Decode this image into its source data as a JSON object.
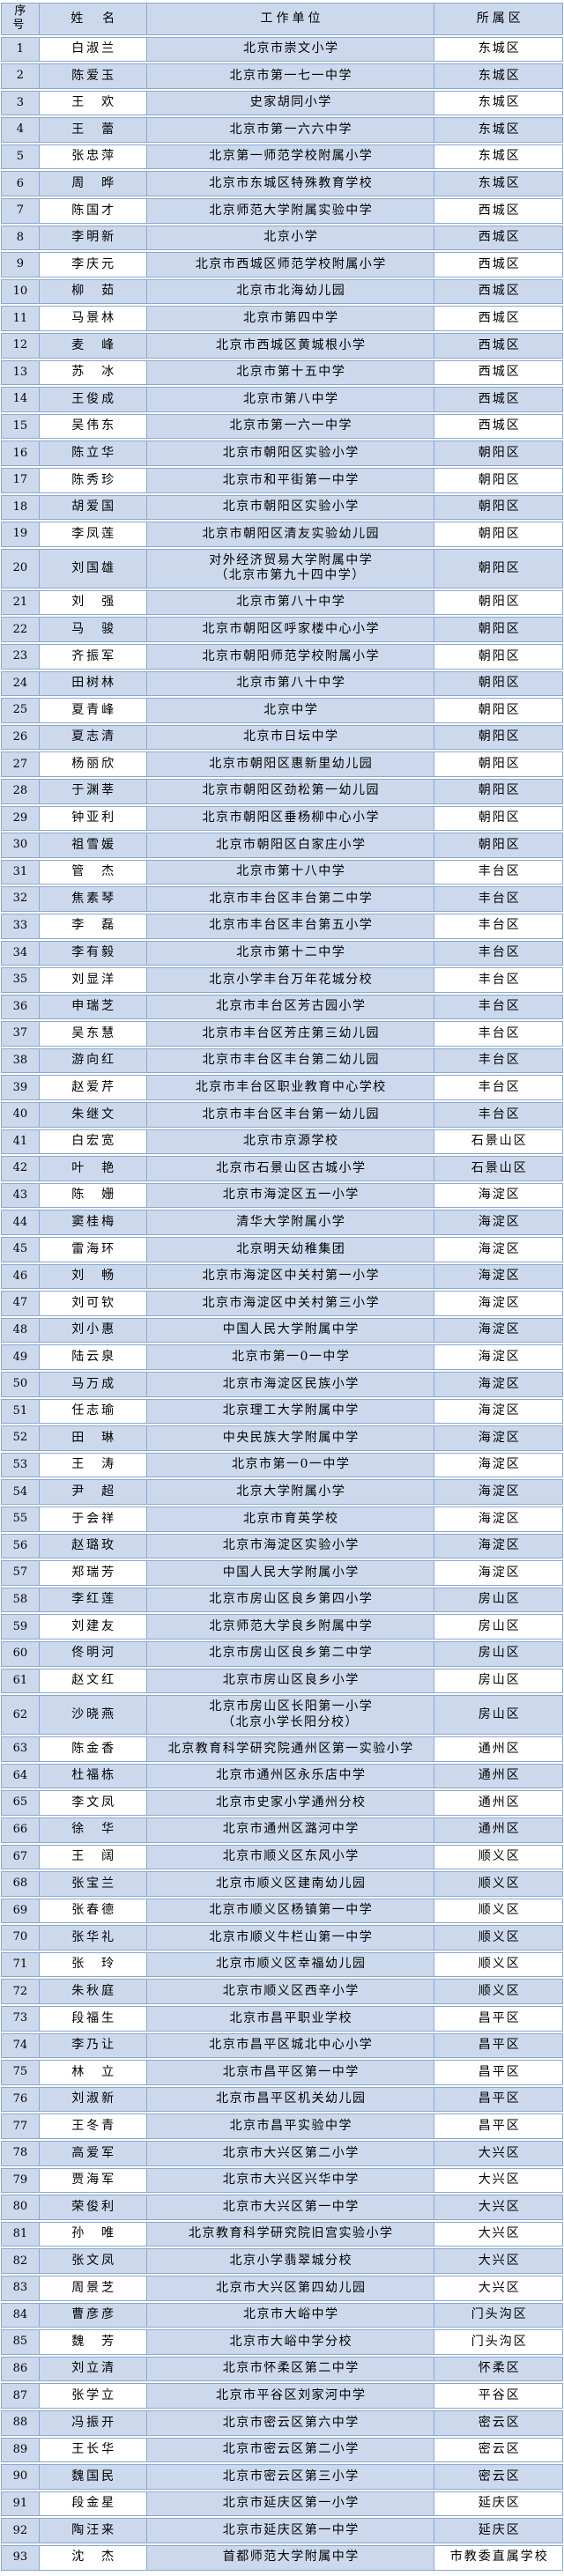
{
  "colors": {
    "cell_blue": "#ccd9ed",
    "cell_white": "#ffffff",
    "border": "#8ba7d0",
    "text": "#000000"
  },
  "table": {
    "headers": [
      "序号",
      "姓　名",
      "工作单位",
      "所属区"
    ],
    "rows": [
      {
        "no": "1",
        "name": "白淑兰",
        "unit": "北京市崇文小学",
        "district": "东城区"
      },
      {
        "no": "2",
        "name": "陈爱玉",
        "unit": "北京市第一七一中学",
        "district": "东城区"
      },
      {
        "no": "3",
        "name": "王　欢",
        "unit": "史家胡同小学",
        "district": "东城区"
      },
      {
        "no": "4",
        "name": "王　蕾",
        "unit": "北京市第一六六中学",
        "district": "东城区"
      },
      {
        "no": "5",
        "name": "张忠萍",
        "unit": "北京第一师范学校附属小学",
        "district": "东城区"
      },
      {
        "no": "6",
        "name": "周　晔",
        "unit": "北京市东城区特殊教育学校",
        "district": "东城区"
      },
      {
        "no": "7",
        "name": "陈国才",
        "unit": "北京师范大学附属实验中学",
        "district": "西城区"
      },
      {
        "no": "8",
        "name": "李明新",
        "unit": "北京小学",
        "district": "西城区"
      },
      {
        "no": "9",
        "name": "李庆元",
        "unit": "北京市西城区师范学校附属小学",
        "district": "西城区"
      },
      {
        "no": "10",
        "name": "柳　茹",
        "unit": "北京市北海幼儿园",
        "district": "西城区"
      },
      {
        "no": "11",
        "name": "马景林",
        "unit": "北京市第四中学",
        "district": "西城区"
      },
      {
        "no": "12",
        "name": "麦　峰",
        "unit": "北京市西城区黄城根小学",
        "district": "西城区"
      },
      {
        "no": "13",
        "name": "苏　冰",
        "unit": "北京市第十五中学",
        "district": "西城区"
      },
      {
        "no": "14",
        "name": "王俊成",
        "unit": "北京市第八中学",
        "district": "西城区"
      },
      {
        "no": "15",
        "name": "吴伟东",
        "unit": "北京市第一六一中学",
        "district": "西城区"
      },
      {
        "no": "16",
        "name": "陈立华",
        "unit": "北京市朝阳区实验小学",
        "district": "朝阳区"
      },
      {
        "no": "17",
        "name": "陈秀珍",
        "unit": "北京市和平街第一中学",
        "district": "朝阳区"
      },
      {
        "no": "18",
        "name": "胡爱国",
        "unit": "北京市朝阳区实验小学",
        "district": "朝阳区"
      },
      {
        "no": "19",
        "name": "李凤莲",
        "unit": "北京市朝阳区清友实验幼儿园",
        "district": "朝阳区"
      },
      {
        "no": "20",
        "name": "刘国雄",
        "unit": "对外经济贸易大学附属中学\n（北京市第九十四中学）",
        "district": "朝阳区"
      },
      {
        "no": "21",
        "name": "刘　强",
        "unit": "北京市第八十中学",
        "district": "朝阳区"
      },
      {
        "no": "22",
        "name": "马　骏",
        "unit": "北京市朝阳区呼家楼中心小学",
        "district": "朝阳区"
      },
      {
        "no": "23",
        "name": "齐振军",
        "unit": "北京市朝阳师范学校附属小学",
        "district": "朝阳区"
      },
      {
        "no": "24",
        "name": "田树林",
        "unit": "北京市第八十中学",
        "district": "朝阳区"
      },
      {
        "no": "25",
        "name": "夏青峰",
        "unit": "北京中学",
        "district": "朝阳区"
      },
      {
        "no": "26",
        "name": "夏志清",
        "unit": "北京市日坛中学",
        "district": "朝阳区"
      },
      {
        "no": "27",
        "name": "杨丽欣",
        "unit": "北京市朝阳区惠新里幼儿园",
        "district": "朝阳区"
      },
      {
        "no": "28",
        "name": "于渊莘",
        "unit": "北京市朝阳区劲松第一幼儿园",
        "district": "朝阳区"
      },
      {
        "no": "29",
        "name": "钟亚利",
        "unit": "北京市朝阳区垂杨柳中心小学",
        "district": "朝阳区"
      },
      {
        "no": "30",
        "name": "祖雪媛",
        "unit": "北京市朝阳区白家庄小学",
        "district": "朝阳区"
      },
      {
        "no": "31",
        "name": "管　杰",
        "unit": "北京市第十八中学",
        "district": "丰台区"
      },
      {
        "no": "32",
        "name": "焦素琴",
        "unit": "北京市丰台区丰台第二中学",
        "district": "丰台区"
      },
      {
        "no": "33",
        "name": "李　磊",
        "unit": "北京市丰台区丰台第五小学",
        "district": "丰台区"
      },
      {
        "no": "34",
        "name": "李有毅",
        "unit": "北京市第十二中学",
        "district": "丰台区"
      },
      {
        "no": "35",
        "name": "刘显洋",
        "unit": "北京小学丰台万年花城分校",
        "district": "丰台区"
      },
      {
        "no": "36",
        "name": "申瑞芝",
        "unit": "北京市丰台区芳古园小学",
        "district": "丰台区"
      },
      {
        "no": "37",
        "name": "吴东慧",
        "unit": "北京市丰台区芳庄第三幼儿园",
        "district": "丰台区"
      },
      {
        "no": "38",
        "name": "游向红",
        "unit": "北京市丰台区丰台第二幼儿园",
        "district": "丰台区"
      },
      {
        "no": "39",
        "name": "赵爱芹",
        "unit": "北京市丰台区职业教育中心学校",
        "district": "丰台区"
      },
      {
        "no": "40",
        "name": "朱继文",
        "unit": "北京市丰台区丰台第一幼儿园",
        "district": "丰台区"
      },
      {
        "no": "41",
        "name": "白宏宽",
        "unit": "北京市京源学校",
        "district": "石景山区"
      },
      {
        "no": "42",
        "name": "叶　艳",
        "unit": "北京市石景山区古城小学",
        "district": "石景山区"
      },
      {
        "no": "43",
        "name": "陈　姗",
        "unit": "北京市海淀区五一小学",
        "district": "海淀区"
      },
      {
        "no": "44",
        "name": "窦桂梅",
        "unit": "清华大学附属小学",
        "district": "海淀区"
      },
      {
        "no": "45",
        "name": "雷海环",
        "unit": "北京明天幼稚集团",
        "district": "海淀区"
      },
      {
        "no": "46",
        "name": "刘　畅",
        "unit": "北京市海淀区中关村第一小学",
        "district": "海淀区"
      },
      {
        "no": "47",
        "name": "刘可钦",
        "unit": "北京市海淀区中关村第三小学",
        "district": "海淀区"
      },
      {
        "no": "48",
        "name": "刘小惠",
        "unit": "中国人民大学附属中学",
        "district": "海淀区"
      },
      {
        "no": "49",
        "name": "陆云泉",
        "unit": "北京市第一0一中学",
        "district": "海淀区"
      },
      {
        "no": "50",
        "name": "马万成",
        "unit": "北京市海淀区民族小学",
        "district": "海淀区"
      },
      {
        "no": "51",
        "name": "任志瑜",
        "unit": "北京理工大学附属中学",
        "district": "海淀区"
      },
      {
        "no": "52",
        "name": "田　琳",
        "unit": "中央民族大学附属中学",
        "district": "海淀区"
      },
      {
        "no": "53",
        "name": "王　涛",
        "unit": "北京市第一0一中学",
        "district": "海淀区"
      },
      {
        "no": "54",
        "name": "尹　超",
        "unit": "北京大学附属小学",
        "district": "海淀区"
      },
      {
        "no": "55",
        "name": "于会祥",
        "unit": "北京市育英学校",
        "district": "海淀区"
      },
      {
        "no": "56",
        "name": "赵璐玫",
        "unit": "北京市海淀区实验小学",
        "district": "海淀区"
      },
      {
        "no": "57",
        "name": "郑瑞芳",
        "unit": "中国人民大学附属小学",
        "district": "海淀区"
      },
      {
        "no": "58",
        "name": "李红莲",
        "unit": "北京市房山区良乡第四小学",
        "district": "房山区"
      },
      {
        "no": "59",
        "name": "刘建友",
        "unit": "北京师范大学良乡附属中学",
        "district": "房山区"
      },
      {
        "no": "60",
        "name": "佟明河",
        "unit": "北京市房山区良乡第二中学",
        "district": "房山区"
      },
      {
        "no": "61",
        "name": "赵文红",
        "unit": "北京市房山区良乡小学",
        "district": "房山区"
      },
      {
        "no": "62",
        "name": "沙晓燕",
        "unit": "北京市房山区长阳第一小学\n（北京小学长阳分校）",
        "district": "房山区"
      },
      {
        "no": "63",
        "name": "陈金香",
        "unit": "北京教育科学研究院通州区第一实验小学",
        "district": "通州区"
      },
      {
        "no": "64",
        "name": "杜福栋",
        "unit": "北京市通州区永乐店中学",
        "district": "通州区"
      },
      {
        "no": "65",
        "name": "李文凤",
        "unit": "北京市史家小学通州分校",
        "district": "通州区"
      },
      {
        "no": "66",
        "name": "徐　华",
        "unit": "北京市通州区潞河中学",
        "district": "通州区"
      },
      {
        "no": "67",
        "name": "王　阔",
        "unit": "北京市顺义区东风小学",
        "district": "顺义区"
      },
      {
        "no": "68",
        "name": "张宝兰",
        "unit": "北京市顺义区建南幼儿园",
        "district": "顺义区"
      },
      {
        "no": "69",
        "name": "张春德",
        "unit": "北京市顺义区杨镇第一中学",
        "district": "顺义区"
      },
      {
        "no": "70",
        "name": "张华礼",
        "unit": "北京市顺义牛栏山第一中学",
        "district": "顺义区"
      },
      {
        "no": "71",
        "name": "张　玲",
        "unit": "北京市顺义区幸福幼儿园",
        "district": "顺义区"
      },
      {
        "no": "72",
        "name": "朱秋庭",
        "unit": "北京市顺义区西辛小学",
        "district": "顺义区"
      },
      {
        "no": "73",
        "name": "段福生",
        "unit": "北京市昌平职业学校",
        "district": "昌平区"
      },
      {
        "no": "74",
        "name": "李乃让",
        "unit": "北京市昌平区城北中心小学",
        "district": "昌平区"
      },
      {
        "no": "75",
        "name": "林　立",
        "unit": "北京市昌平区第一中学",
        "district": "昌平区"
      },
      {
        "no": "76",
        "name": "刘淑新",
        "unit": "北京市昌平区机关幼儿园",
        "district": "昌平区"
      },
      {
        "no": "77",
        "name": "王冬青",
        "unit": "北京市昌平实验中学",
        "district": "昌平区"
      },
      {
        "no": "78",
        "name": "高爱军",
        "unit": "北京市大兴区第二小学",
        "district": "大兴区"
      },
      {
        "no": "79",
        "name": "贾海军",
        "unit": "北京市大兴区兴华中学",
        "district": "大兴区"
      },
      {
        "no": "80",
        "name": "荣俊利",
        "unit": "北京市大兴区第一中学",
        "district": "大兴区"
      },
      {
        "no": "81",
        "name": "孙　唯",
        "unit": "北京教育科学研究院旧宫实验小学",
        "district": "大兴区"
      },
      {
        "no": "82",
        "name": "张文凤",
        "unit": "北京小学翡翠城分校",
        "district": "大兴区"
      },
      {
        "no": "83",
        "name": "周景芝",
        "unit": "北京市大兴区第四幼儿园",
        "district": "大兴区"
      },
      {
        "no": "84",
        "name": "曹彦彦",
        "unit": "北京市大峪中学",
        "district": "门头沟区"
      },
      {
        "no": "85",
        "name": "魏　芳",
        "unit": "北京市大峪中学分校",
        "district": "门头沟区"
      },
      {
        "no": "86",
        "name": "刘立清",
        "unit": "北京市怀柔区第二中学",
        "district": "怀柔区"
      },
      {
        "no": "87",
        "name": "张学立",
        "unit": "北京市平谷区刘家河中学",
        "district": "平谷区"
      },
      {
        "no": "88",
        "name": "冯振开",
        "unit": "北京市密云区第六中学",
        "district": "密云区"
      },
      {
        "no": "89",
        "name": "王长华",
        "unit": "北京市密云区第二小学",
        "district": "密云区"
      },
      {
        "no": "90",
        "name": "魏国民",
        "unit": "北京市密云区第三小学",
        "district": "密云区"
      },
      {
        "no": "91",
        "name": "段金星",
        "unit": "北京市延庆区第一小学",
        "district": "延庆区"
      },
      {
        "no": "92",
        "name": "陶汪来",
        "unit": "北京市延庆区第一中学",
        "district": "延庆区"
      },
      {
        "no": "93",
        "name": "沈　杰",
        "unit": "首都师范大学附属中学",
        "district": "市教委直属学校"
      }
    ]
  }
}
